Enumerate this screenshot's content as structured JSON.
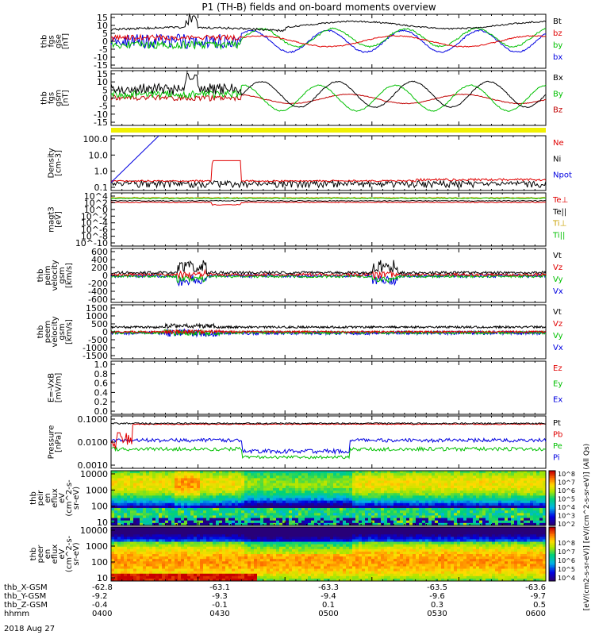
{
  "title": "P1 (TH-B) fields and on-board moments overview",
  "date_label": "2018 Aug 27",
  "footer_rows": [
    {
      "label": "thb_X-GSM",
      "values": [
        "-62.8",
        "-63.1",
        "-63.3",
        "-63.5",
        "-63.6"
      ]
    },
    {
      "label": "thb_Y-GSM",
      "values": [
        "-9.2",
        "-9.3",
        "-9.4",
        "-9.6",
        "-9.7"
      ]
    },
    {
      "label": "thb_Z-GSM",
      "values": [
        "-0.4",
        "-0.1",
        "0.1",
        "0.3",
        "0.5"
      ]
    },
    {
      "label": "hhmm",
      "values": [
        "0400",
        "0430",
        "0500",
        "0530",
        "0600"
      ]
    }
  ],
  "colorbar_label": "[eV/(cm2-s-sr-eV)] [eV/(cm^2-s-sr-eV)] (All Qs)",
  "colorbar_ticks": [
    "10^8",
    "10^7",
    "10^6",
    "10^5",
    "10^4",
    "10^3",
    "10^2"
  ],
  "chart_data": [
    {
      "type": "line",
      "id": "bfield_fgs_gse",
      "ylabel": [
        "thb",
        "fgs",
        "gse",
        "[nT]"
      ],
      "ylim": [
        -15,
        15
      ],
      "yticks": [
        "15",
        "10",
        "5",
        "0",
        "-5",
        "-10",
        "-15"
      ],
      "legend": [
        {
          "name": "Bt",
          "color": "#000000"
        },
        {
          "name": "bz",
          "color": "#e00000"
        },
        {
          "name": "by",
          "color": "#00c000"
        },
        {
          "name": "bx",
          "color": "#0000e0"
        }
      ]
    },
    {
      "type": "line",
      "id": "bfield_fgs_gsm",
      "ylabel": [
        "thb",
        "fgs",
        "gsm",
        "[nT]"
      ],
      "ylim": [
        -15,
        15
      ],
      "yticks": [
        "15",
        "10",
        "5",
        "0",
        "-5",
        "-10",
        "-15"
      ],
      "legend": [
        {
          "name": "Bx",
          "color": "#000000"
        },
        {
          "name": "By",
          "color": "#00c000"
        },
        {
          "name": "Bz",
          "color": "#c00000"
        }
      ]
    },
    {
      "type": "line",
      "id": "density",
      "ylabel": [
        "Density",
        "[cm-3]"
      ],
      "yticks": [
        "100.0",
        "10.0",
        "1.0",
        "0.1"
      ],
      "legend": [
        {
          "name": "Ne",
          "color": "#e00000"
        },
        {
          "name": "Ni",
          "color": "#000000"
        },
        {
          "name": "Npot",
          "color": "#0000e0"
        }
      ]
    },
    {
      "type": "line",
      "id": "temperature",
      "ylabel": [
        "magt3",
        "[eV]"
      ],
      "yticks": [
        "10^4",
        "10^2",
        "10^0",
        "10^-2",
        "10^-4",
        "10^-6",
        "10^-8",
        "10^-10"
      ],
      "legend": [
        {
          "name": "Te⊥",
          "color": "#e00000"
        },
        {
          "name": "Te||",
          "color": "#000000"
        },
        {
          "name": "Ti⊥",
          "color": "#c8a000"
        },
        {
          "name": "Ti||",
          "color": "#00c000"
        }
      ]
    },
    {
      "type": "line",
      "id": "ion_velocity",
      "ylabel": [
        "thb",
        "peim",
        "velocity",
        "gsm",
        "[km/s]"
      ],
      "ylim": [
        -600,
        600
      ],
      "yticks": [
        "600",
        "400",
        "200",
        "0",
        "-200",
        "-400",
        "-600"
      ],
      "legend": [
        {
          "name": "Vt",
          "color": "#000000"
        },
        {
          "name": "Vz",
          "color": "#e00000"
        },
        {
          "name": "Vy",
          "color": "#00c000"
        },
        {
          "name": "Vx",
          "color": "#0000e0"
        }
      ]
    },
    {
      "type": "line",
      "id": "electron_velocity",
      "ylabel": [
        "thb",
        "peem",
        "velocity",
        "gsm",
        "[km/s]"
      ],
      "ylim": [
        -1500,
        1500
      ],
      "yticks": [
        "1500",
        "1000",
        "500",
        "0",
        "-500",
        "-1000",
        "-1500"
      ],
      "legend": [
        {
          "name": "Vt",
          "color": "#000000"
        },
        {
          "name": "Vz",
          "color": "#e00000"
        },
        {
          "name": "Vy",
          "color": "#00c000"
        },
        {
          "name": "Vx",
          "color": "#0000e0"
        }
      ]
    },
    {
      "type": "line",
      "id": "e_field",
      "ylabel": [
        "E=-VxB",
        "[mV/m]"
      ],
      "ylim": [
        0,
        1
      ],
      "yticks": [
        "1.0",
        "0.8",
        "0.6",
        "0.4",
        "0.2",
        "0.0"
      ],
      "legend": [
        {
          "name": "Ez",
          "color": "#e00000"
        },
        {
          "name": "Ey",
          "color": "#00c000"
        },
        {
          "name": "Ex",
          "color": "#0000e0"
        }
      ]
    },
    {
      "type": "line",
      "id": "pressure",
      "ylabel": [
        "Pressure",
        "[nPa]"
      ],
      "yticks": [
        "0.1000",
        "0.0100",
        "0.0010"
      ],
      "legend": [
        {
          "name": "Pt",
          "color": "#000000"
        },
        {
          "name": "Pb",
          "color": "#e00000"
        },
        {
          "name": "Pe",
          "color": "#00c000"
        },
        {
          "name": "Pi",
          "color": "#0000e0"
        }
      ]
    },
    {
      "type": "heatmap",
      "id": "ion_energy_flux",
      "ylabel": [
        "thb",
        "peir",
        "en",
        "eflux",
        "eV",
        "(cm^2-s-",
        "sr-eV)"
      ],
      "yticks": [
        "10000",
        "1000",
        "100",
        "10"
      ]
    },
    {
      "type": "heatmap",
      "id": "electron_energy_flux",
      "ylabel": [
        "thb",
        "peer",
        "en",
        "eflux",
        "eV",
        "(cm^2-s-",
        "sr-eV)"
      ],
      "yticks": [
        "10000",
        "1000",
        "100",
        "10"
      ]
    }
  ]
}
